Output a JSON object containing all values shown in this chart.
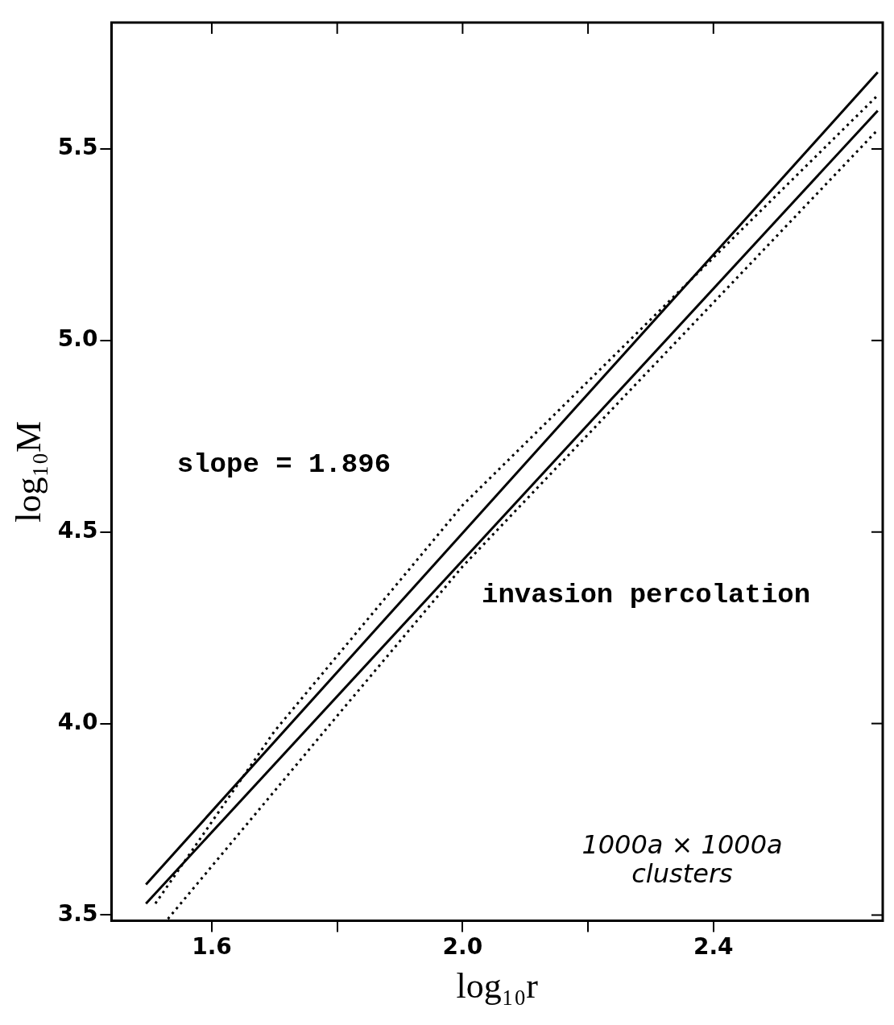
{
  "chart_data": {
    "type": "line",
    "xlabel": "log₁₀r",
    "ylabel": "log₁₀M",
    "xlim": [
      1.44,
      2.67
    ],
    "ylim": [
      3.485,
      5.83
    ],
    "xticks": [
      1.6,
      {
        "value": 1.8,
        "label": null
      },
      {
        "value": 2.0,
        "label": "2.0"
      },
      {
        "value": 2.2,
        "label": null
      },
      2.4
    ],
    "yticks": [
      3.5,
      {
        "value": 4,
        "label": "4.0"
      },
      4.5,
      {
        "value": 5,
        "label": "5.0"
      },
      5.5
    ],
    "grid": false,
    "legend": false,
    "marker": "none",
    "series": [
      {
        "color": "#000000",
        "line_style": "solid",
        "x": [
          1.495,
          2.662
        ],
        "values": [
          3.58,
          5.7
        ]
      },
      {
        "color": "#000000",
        "line_style": "solid",
        "x": [
          1.495,
          2.662
        ],
        "values": [
          3.53,
          5.6
        ]
      },
      {
        "color": "#000000",
        "line_style": "dotted",
        "x": [
          1.51,
          1.7,
          2.0,
          2.662
        ],
        "values": [
          3.53,
          3.98,
          4.57,
          5.64
        ]
      },
      {
        "color": "#000000",
        "line_style": "dotted",
        "x": [
          1.53,
          1.8,
          2.0,
          2.662
        ],
        "values": [
          3.49,
          4.02,
          4.41,
          5.55
        ]
      }
    ],
    "annotations": [
      "slope = 1.896",
      "invasion percolation",
      "1000a × 1000a clusters"
    ]
  }
}
